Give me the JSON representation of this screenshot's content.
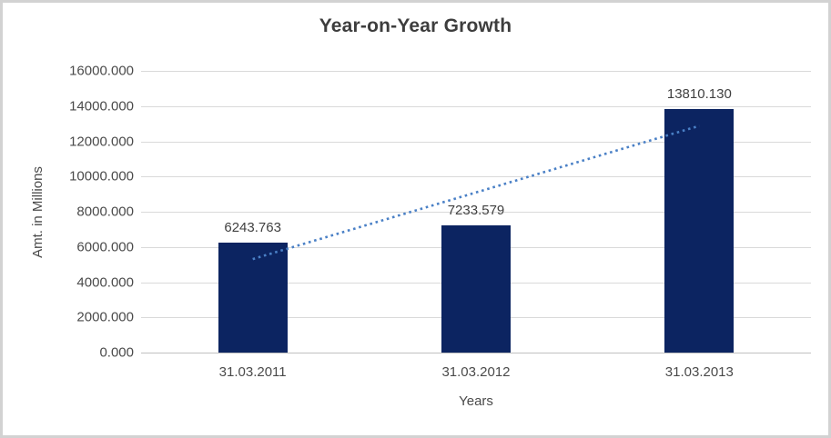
{
  "chart_data": {
    "type": "bar",
    "title": "Year-on-Year Growth",
    "xlabel": "Years",
    "ylabel": "Amt. in Millions",
    "categories": [
      "31.03.2011",
      "31.03.2012",
      "31.03.2013"
    ],
    "values": [
      6243.763,
      7233.579,
      13810.13
    ],
    "data_labels": [
      "6243.763",
      "7233.579",
      "13810.130"
    ],
    "ylim": [
      0,
      16000
    ],
    "ytick_step": 2000,
    "ytick_labels": [
      "0.000",
      "2000.000",
      "4000.000",
      "6000.000",
      "8000.000",
      "10000.000",
      "12000.000",
      "14000.000",
      "16000.000"
    ],
    "grid": "horizontal",
    "legend": "none",
    "trendline": {
      "type": "linear",
      "style": "dotted",
      "start_value": 5312.6,
      "end_value": 12879.0
    },
    "colors": {
      "bar": "#0c2461",
      "trendline": "#4a80c6",
      "gridline": "#d9d9d9",
      "axis_line": "#c0c0c0",
      "title_text": "#3d3d3d",
      "axis_text": "#4a4a4a",
      "label_text": "#404040",
      "background": "#ffffff",
      "border": "#d2d2d2"
    }
  }
}
